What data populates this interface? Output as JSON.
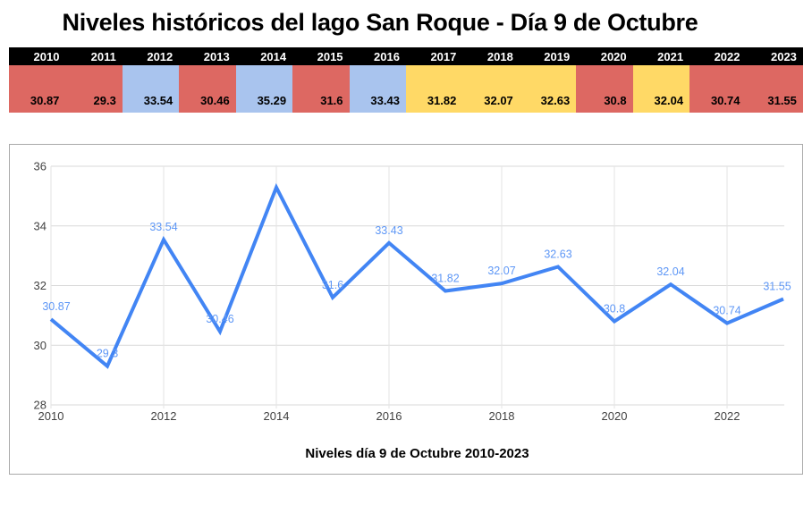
{
  "title": "Niveles históricos del lago San Roque - Día 9 de Octubre",
  "palette": {
    "header_bg": "#000000",
    "header_text": "#ffffff",
    "value_text": "#000000",
    "red": "#dd6862",
    "blue": "#a9c4ee",
    "yellow": "#ffd966"
  },
  "table": {
    "columns": [
      {
        "year": "2010",
        "value": "30.87",
        "color": "red"
      },
      {
        "year": "2011",
        "value": "29.3",
        "color": "red"
      },
      {
        "year": "2012",
        "value": "33.54",
        "color": "blue"
      },
      {
        "year": "2013",
        "value": "30.46",
        "color": "red"
      },
      {
        "year": "2014",
        "value": "35.29",
        "color": "blue"
      },
      {
        "year": "2015",
        "value": "31.6",
        "color": "red"
      },
      {
        "year": "2016",
        "value": "33.43",
        "color": "blue"
      },
      {
        "year": "2017",
        "value": "31.82",
        "color": "yellow"
      },
      {
        "year": "2018",
        "value": "32.07",
        "color": "yellow"
      },
      {
        "year": "2019",
        "value": "32.63",
        "color": "yellow"
      },
      {
        "year": "2020",
        "value": "30.8",
        "color": "red"
      },
      {
        "year": "2021",
        "value": "32.04",
        "color": "yellow"
      },
      {
        "year": "2022",
        "value": "30.74",
        "color": "red"
      },
      {
        "year": "2023",
        "value": "31.55",
        "color": "red"
      }
    ]
  },
  "chart_data": {
    "type": "line",
    "x": [
      2010,
      2011,
      2012,
      2013,
      2014,
      2015,
      2016,
      2017,
      2018,
      2019,
      2020,
      2021,
      2022,
      2023
    ],
    "values": [
      30.87,
      29.3,
      33.54,
      30.46,
      35.29,
      31.6,
      33.43,
      31.82,
      32.07,
      32.63,
      30.8,
      32.04,
      30.74,
      31.55
    ],
    "data_labels": [
      "30.87",
      "29.3",
      "33.54",
      "30.46",
      "",
      "31.6",
      "33.43",
      "31.82",
      "32.07",
      "32.63",
      "30.8",
      "32.04",
      "30.74",
      "31.55"
    ],
    "xlabel": "Niveles día 9 de Octubre 2010-2023",
    "ylabel": "",
    "ylim": [
      28,
      36
    ],
    "y_ticks": [
      36,
      34,
      32,
      30,
      28
    ],
    "x_ticks": [
      2010,
      2012,
      2014,
      2016,
      2018,
      2020,
      2022
    ],
    "grid": true,
    "legend": "none",
    "line_color": "#4285f4",
    "label_color": "#5e97f6",
    "axis_text_color": "#424242",
    "grid_color": "#d9d9d9",
    "minor_grid_color": "#e3e3e3"
  }
}
